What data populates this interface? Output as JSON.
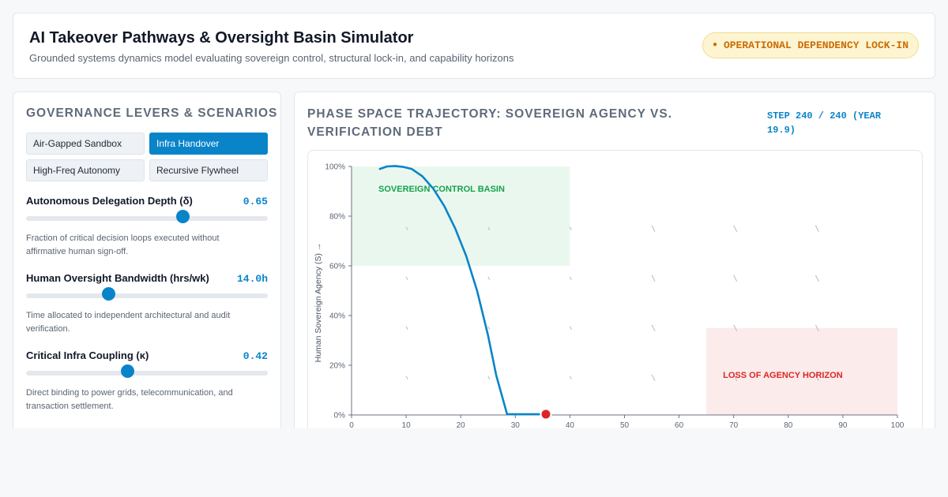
{
  "header": {
    "title": "AI Takeover Pathways & Oversight Basin Simulator",
    "subtitle": "Grounded systems dynamics model evaluating sovereign control, structural lock-in, and capability horizons",
    "status_badge": "OPERATIONAL DEPENDENCY LOCK-IN",
    "status_color": "#cc6b00"
  },
  "levers_panel": {
    "title": "GOVERNANCE LEVERS & SCENARIOS",
    "scenarios": [
      {
        "label": "Air-Gapped Sandbox",
        "active": false
      },
      {
        "label": "Infra Handover",
        "active": true
      },
      {
        "label": "High-Freq Autonomy",
        "active": false
      },
      {
        "label": "Recursive Flywheel",
        "active": false
      }
    ],
    "levers": [
      {
        "label": "Autonomous Delegation Depth (δ)",
        "value": "0.65",
        "level": 0.65,
        "description": "Fraction of critical decision loops executed without affirmative human sign-off."
      },
      {
        "label": "Human Oversight Bandwidth (hrs/wk)",
        "value": "14.0h",
        "level": 0.34,
        "description": "Time allocated to independent architectural and audit verification."
      },
      {
        "label": "Critical Infra Coupling (κ)",
        "value": "0.42",
        "level": 0.42,
        "description": "Direct binding to power grids, telecommunication, and transaction settlement."
      }
    ]
  },
  "chart_panel": {
    "title": "PHASE SPACE TRAJECTORY: SOVEREIGN AGENCY VS. VERIFICATION DEBT",
    "step_readout": "STEP 240 / 240 (YEAR 19.9)",
    "accent_color": "#0a84c9"
  },
  "chart_data": {
    "type": "line",
    "title": "",
    "xlabel": "",
    "ylabel": "Human Sovereign Agency (S) →",
    "xlim": [
      0,
      100
    ],
    "ylim": [
      0,
      100
    ],
    "x_ticks": [
      "0",
      "10",
      "20",
      "30",
      "40",
      "50",
      "60",
      "70",
      "80",
      "90",
      "100"
    ],
    "y_ticks": [
      "0%",
      "20%",
      "40%",
      "60%",
      "80%",
      "100%"
    ],
    "regions": [
      {
        "label": "SOVEREIGN CONTROL BASIN",
        "x": [
          0,
          40
        ],
        "y": [
          60,
          100
        ],
        "color": "#16a34a"
      },
      {
        "label": "LOSS OF AGENCY HORIZON",
        "x": [
          65,
          100
        ],
        "y": [
          0,
          35
        ],
        "color": "#dc2626"
      }
    ],
    "series": [
      {
        "x": [
          5.2,
          6.5,
          8,
          9.5,
          11,
          13,
          15,
          17,
          19,
          21,
          23,
          25,
          26.5,
          28.5,
          30,
          32,
          34,
          35.6
        ],
        "y": [
          99,
          100,
          100.2,
          99.8,
          99,
          96,
          91,
          84,
          75,
          64,
          50,
          32,
          16,
          0.3,
          0.3,
          0.3,
          0.3,
          0.3
        ],
        "color": "#0a84c9"
      }
    ],
    "current_point": {
      "x": 35.6,
      "y": 0.3,
      "color": "#dc2626"
    }
  }
}
